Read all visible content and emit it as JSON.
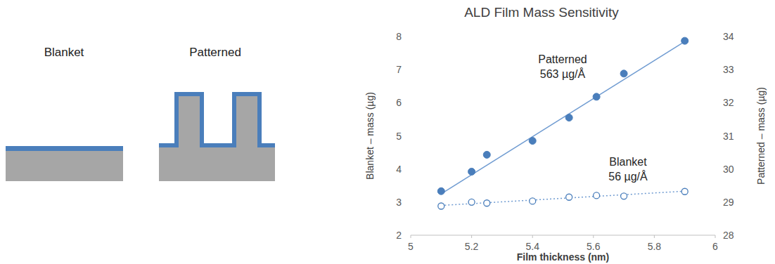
{
  "diagram": {
    "labels": [
      "Blanket",
      "Patterned"
    ]
  },
  "chart_data": {
    "type": "scatter",
    "title": "ALD Film Mass Sensitivity",
    "x_label": "Film thickness (nm)",
    "y_label": "Blanket – mass (µg)",
    "y2_label": "Patterned – mass (µg)",
    "xlim": [
      5,
      6
    ],
    "xticks": [
      5,
      5.2,
      5.4,
      5.6,
      5.8,
      6
    ],
    "ylim": [
      2,
      8
    ],
    "yticks": [
      2,
      3,
      4,
      5,
      6,
      7,
      8
    ],
    "y2lim": [
      28,
      34
    ],
    "y2ticks": [
      28,
      29,
      30,
      31,
      32,
      33,
      34
    ],
    "grid": false,
    "series": [
      {
        "name": "Patterned",
        "annotation": "563 µg/Å",
        "type": "scatter",
        "axis": "y2",
        "color": "#4a7ebb",
        "marker": "filled",
        "x": [
          5.1,
          5.2,
          5.25,
          5.4,
          5.52,
          5.61,
          5.7,
          5.9
        ],
        "values": [
          29.33,
          29.92,
          30.43,
          30.85,
          31.55,
          32.18,
          32.88,
          33.87
        ]
      },
      {
        "name": "Blanket",
        "annotation": "56 µg/Å",
        "type": "scatter",
        "color": "#4a7ebb",
        "marker": "open",
        "x": [
          5.1,
          5.2,
          5.25,
          5.4,
          5.52,
          5.61,
          5.7,
          5.9
        ],
        "values": [
          2.88,
          3.0,
          2.97,
          3.03,
          3.15,
          3.2,
          3.18,
          3.32
        ]
      },
      {
        "type": "line",
        "axis": "y2",
        "color": "#6f9bd1",
        "line_style": "solid",
        "x": [
          5.1,
          5.9
        ],
        "values": [
          29.25,
          33.85
        ]
      },
      {
        "type": "line",
        "color": "#6f9bd1",
        "line_style": "dotted",
        "x": [
          5.1,
          5.9
        ],
        "values": [
          2.9,
          3.33
        ]
      }
    ]
  }
}
